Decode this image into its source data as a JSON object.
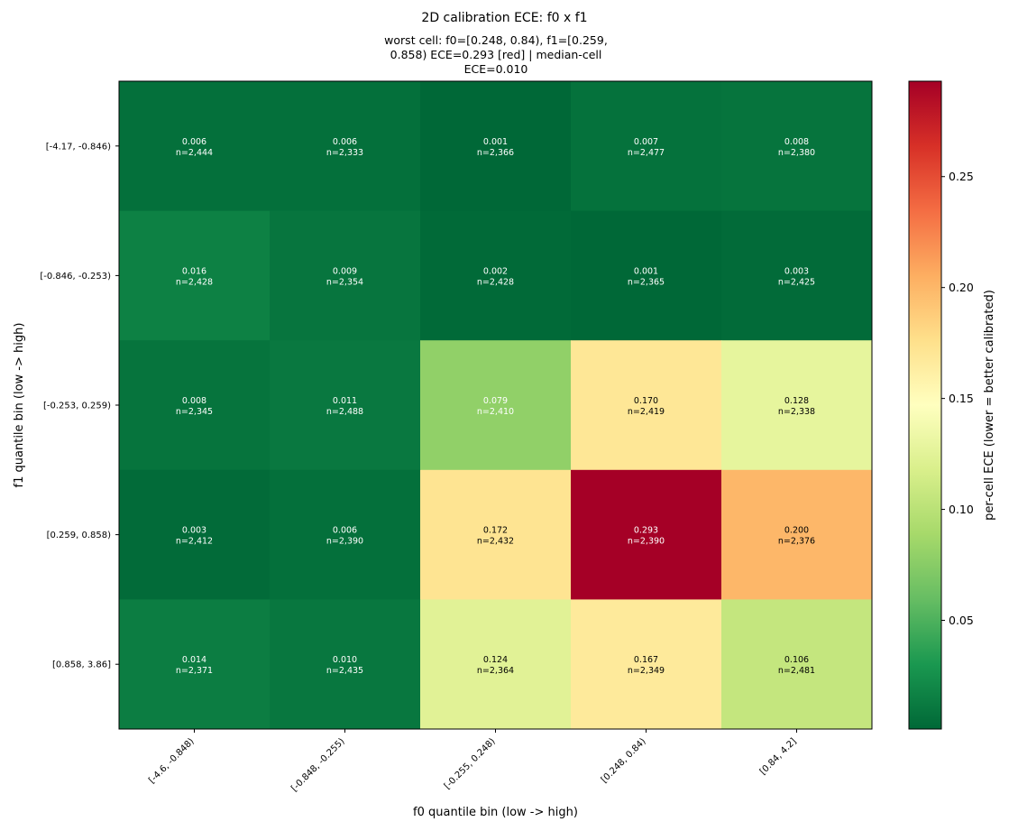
{
  "chart_data": {
    "type": "heatmap",
    "title": "2D calibration ECE: f0 x f1",
    "subtitle_lines": [
      "worst cell: f0=[0.248, 0.84), f1=[0.259,",
      "0.858)  ECE=0.293  [red]  |  median-cell",
      "ECE=0.010"
    ],
    "xlabel": "f0 quantile bin (low -> high)",
    "ylabel": "f1 quantile bin (low -> high)",
    "x_categories": [
      "[-4.6, -0.848)",
      "[-0.848, -0.255)",
      "[-0.255, 0.248)",
      "[0.248, 0.84)",
      "[0.84, 4.2]"
    ],
    "y_categories": [
      "[-4.17, -0.846)",
      "[-0.846, -0.253)",
      "[-0.253, 0.259)",
      "[0.259, 0.858)",
      "[0.858, 3.86]"
    ],
    "ece": [
      [
        0.006,
        0.006,
        0.001,
        0.007,
        0.008
      ],
      [
        0.016,
        0.009,
        0.002,
        0.001,
        0.003
      ],
      [
        0.008,
        0.011,
        0.079,
        0.17,
        0.128
      ],
      [
        0.003,
        0.006,
        0.172,
        0.293,
        0.2
      ],
      [
        0.014,
        0.01,
        0.124,
        0.167,
        0.106
      ]
    ],
    "counts": [
      [
        "n=2,444",
        "n=2,333",
        "n=2,366",
        "n=2,477",
        "n=2,380"
      ],
      [
        "n=2,428",
        "n=2,354",
        "n=2,428",
        "n=2,365",
        "n=2,425"
      ],
      [
        "n=2,345",
        "n=2,488",
        "n=2,410",
        "n=2,419",
        "n=2,338"
      ],
      [
        "n=2,412",
        "n=2,390",
        "n=2,432",
        "n=2,390",
        "n=2,376"
      ],
      [
        "n=2,371",
        "n=2,435",
        "n=2,364",
        "n=2,349",
        "n=2,481"
      ]
    ],
    "colorbar": {
      "label": "per-cell ECE (lower = better calibrated)",
      "range": [
        0.001,
        0.293
      ],
      "ticks": [
        0.05,
        0.1,
        0.15,
        0.2,
        0.25
      ],
      "tick_labels": [
        "0.05",
        "0.10",
        "0.15",
        "0.20",
        "0.25"
      ],
      "colormap": "RdYlGn_r"
    }
  }
}
